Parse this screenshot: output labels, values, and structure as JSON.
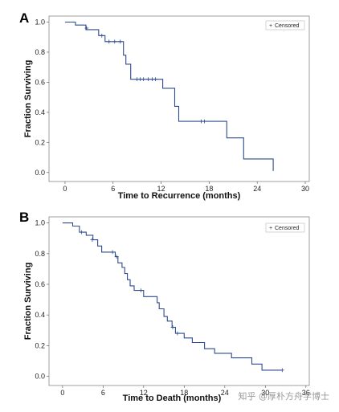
{
  "chart_data": [
    {
      "type": "line",
      "panel_label": "A",
      "xlabel": "Time to Recurrence (months)",
      "ylabel": "Fraction Surviving",
      "xlim": [
        -2,
        30.5
      ],
      "ylim": [
        -0.06,
        1.04
      ],
      "xticks": [
        0,
        6,
        12,
        18,
        24,
        30
      ],
      "yticks": [
        0.0,
        0.2,
        0.4,
        0.6,
        0.8,
        1.0
      ],
      "ytick_labels": [
        "0.0",
        "0.2",
        "0.4",
        "0.6",
        "0.8",
        "1.0"
      ],
      "grid": false,
      "legend": {
        "position": "top-right",
        "entries": [
          "Censored"
        ],
        "symbol": "+"
      },
      "series": [
        {
          "color": "#2e4a8e",
          "step_points": [
            [
              0,
              1.0
            ],
            [
              1.3,
              1.0
            ],
            [
              1.3,
              0.98
            ],
            [
              2.6,
              0.98
            ],
            [
              2.6,
              0.95
            ],
            [
              4.2,
              0.95
            ],
            [
              4.2,
              0.91
            ],
            [
              5.0,
              0.91
            ],
            [
              5.0,
              0.87
            ],
            [
              7.3,
              0.87
            ],
            [
              7.3,
              0.78
            ],
            [
              7.6,
              0.78
            ],
            [
              7.6,
              0.72
            ],
            [
              8.2,
              0.72
            ],
            [
              8.2,
              0.62
            ],
            [
              12.2,
              0.62
            ],
            [
              12.2,
              0.56
            ],
            [
              13.7,
              0.56
            ],
            [
              13.7,
              0.44
            ],
            [
              14.2,
              0.44
            ],
            [
              14.2,
              0.34
            ],
            [
              20.2,
              0.34
            ],
            [
              20.2,
              0.23
            ],
            [
              22.3,
              0.23
            ],
            [
              22.3,
              0.09
            ],
            [
              26.0,
              0.09
            ],
            [
              26.0,
              0.01
            ]
          ],
          "censored": [
            [
              2.7,
              0.96
            ],
            [
              4.6,
              0.91
            ],
            [
              5.5,
              0.87
            ],
            [
              6.2,
              0.87
            ],
            [
              6.9,
              0.87
            ],
            [
              9.0,
              0.62
            ],
            [
              9.4,
              0.62
            ],
            [
              9.8,
              0.62
            ],
            [
              10.4,
              0.62
            ],
            [
              10.9,
              0.62
            ],
            [
              11.3,
              0.62
            ],
            [
              17.0,
              0.34
            ],
            [
              17.4,
              0.34
            ]
          ]
        }
      ]
    },
    {
      "type": "line",
      "panel_label": "B",
      "xlabel": "Time to Death (months)",
      "ylabel": "Fraction Surviving",
      "xlim": [
        -2,
        36.5
      ],
      "ylim": [
        -0.06,
        1.04
      ],
      "xticks": [
        0,
        6,
        12,
        18,
        24,
        30,
        36
      ],
      "yticks": [
        0.0,
        0.2,
        0.4,
        0.6,
        0.8,
        1.0
      ],
      "ytick_labels": [
        "0.0",
        "0.2",
        "0.4",
        "0.6",
        "0.8",
        "1.0"
      ],
      "grid": false,
      "legend": {
        "position": "top-right",
        "entries": [
          "Censored"
        ],
        "symbol": "+"
      },
      "series": [
        {
          "color": "#2e4a8e",
          "step_points": [
            [
              0,
              1.0
            ],
            [
              1.5,
              1.0
            ],
            [
              1.5,
              0.98
            ],
            [
              2.5,
              0.98
            ],
            [
              2.5,
              0.94
            ],
            [
              3.5,
              0.94
            ],
            [
              3.5,
              0.92
            ],
            [
              4.5,
              0.92
            ],
            [
              4.5,
              0.89
            ],
            [
              5.2,
              0.89
            ],
            [
              5.2,
              0.85
            ],
            [
              5.8,
              0.85
            ],
            [
              5.8,
              0.81
            ],
            [
              7.8,
              0.81
            ],
            [
              7.8,
              0.78
            ],
            [
              8.2,
              0.78
            ],
            [
              8.2,
              0.74
            ],
            [
              8.8,
              0.74
            ],
            [
              8.8,
              0.71
            ],
            [
              9.2,
              0.71
            ],
            [
              9.2,
              0.67
            ],
            [
              9.6,
              0.67
            ],
            [
              9.6,
              0.63
            ],
            [
              10.0,
              0.63
            ],
            [
              10.0,
              0.59
            ],
            [
              10.6,
              0.59
            ],
            [
              10.6,
              0.56
            ],
            [
              12.0,
              0.56
            ],
            [
              12.0,
              0.52
            ],
            [
              14.0,
              0.52
            ],
            [
              14.0,
              0.48
            ],
            [
              14.3,
              0.48
            ],
            [
              14.3,
              0.44
            ],
            [
              15.0,
              0.44
            ],
            [
              15.0,
              0.39
            ],
            [
              15.5,
              0.39
            ],
            [
              15.5,
              0.36
            ],
            [
              16.2,
              0.36
            ],
            [
              16.2,
              0.32
            ],
            [
              16.7,
              0.32
            ],
            [
              16.7,
              0.28
            ],
            [
              18.0,
              0.28
            ],
            [
              18.0,
              0.25
            ],
            [
              19.2,
              0.25
            ],
            [
              19.2,
              0.22
            ],
            [
              21.0,
              0.22
            ],
            [
              21.0,
              0.18
            ],
            [
              22.5,
              0.18
            ],
            [
              22.5,
              0.15
            ],
            [
              25.0,
              0.15
            ],
            [
              25.0,
              0.12
            ],
            [
              28.0,
              0.12
            ],
            [
              28.0,
              0.08
            ],
            [
              29.5,
              0.08
            ],
            [
              29.5,
              0.04
            ],
            [
              32.5,
              0.04
            ]
          ],
          "censored": [
            [
              2.8,
              0.94
            ],
            [
              4.4,
              0.89
            ],
            [
              7.4,
              0.81
            ],
            [
              8.0,
              0.78
            ],
            [
              11.6,
              0.56
            ],
            [
              16.3,
              0.32
            ],
            [
              17.0,
              0.28
            ],
            [
              32.5,
              0.04
            ]
          ]
        }
      ]
    }
  ],
  "watermark": "知乎 @厚朴方舟学博士"
}
